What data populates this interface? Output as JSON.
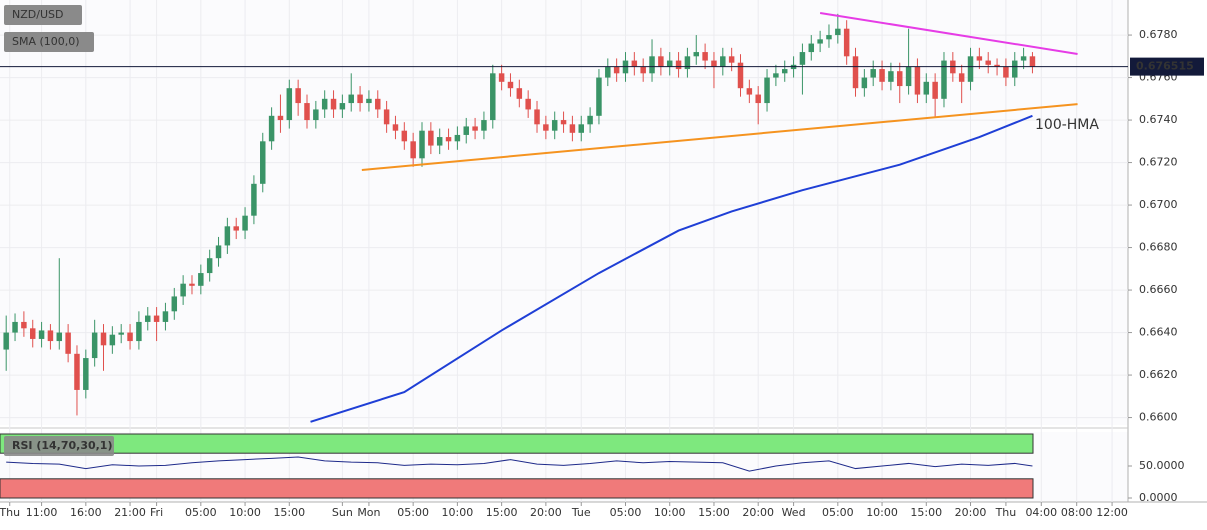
{
  "chart_data": {
    "type": "candlestick",
    "symbol": "NZD/USD",
    "indicator": "SMA (100,0)",
    "open": [
      0.6632,
      0.664,
      0.6645,
      0.6642,
      0.6637,
      0.6641,
      0.6636,
      0.664,
      0.663,
      0.6613,
      0.6628,
      0.664,
      0.6634,
      0.6639,
      0.664,
      0.6636,
      0.6645,
      0.6648,
      0.6645,
      0.665,
      0.6657,
      0.6663,
      0.6662,
      0.6668,
      0.6675,
      0.6681,
      0.669,
      0.6688,
      0.6695,
      0.671,
      0.673,
      0.6742,
      0.674,
      0.6755,
      0.6748,
      0.674,
      0.6745,
      0.675,
      0.6745,
      0.6748,
      0.6752,
      0.6748,
      0.675,
      0.6745,
      0.6738,
      0.6735,
      0.673,
      0.6722,
      0.6735,
      0.6728,
      0.6732,
      0.673,
      0.6733,
      0.6737,
      0.6735,
      0.674,
      0.6762,
      0.6758,
      0.6755,
      0.675,
      0.6745,
      0.6738,
      0.6735,
      0.674,
      0.6738,
      0.6734,
      0.6738,
      0.6742,
      0.676,
      0.6765,
      0.6762,
      0.6768,
      0.6765,
      0.6762,
      0.677,
      0.6765,
      0.6768,
      0.6764,
      0.677,
      0.6772,
      0.6768,
      0.6765,
      0.677,
      0.6767,
      0.6755,
      0.6752,
      0.6748,
      0.676,
      0.6762,
      0.6764,
      0.6766,
      0.6772,
      0.6776,
      0.6778,
      0.678,
      0.6783,
      0.677,
      0.6755,
      0.676,
      0.6764,
      0.6758,
      0.6763,
      0.6756,
      0.6765,
      0.6752,
      0.6758,
      0.675,
      0.6768,
      0.6762,
      0.6758,
      0.677,
      0.6768,
      0.6766,
      0.6765,
      0.676,
      0.6768,
      0.677
    ],
    "high": [
      0.6648,
      0.6649,
      0.665,
      0.6646,
      0.6645,
      0.6644,
      0.6675,
      0.6644,
      0.6634,
      0.6632,
      0.6646,
      0.6644,
      0.6643,
      0.6644,
      0.6644,
      0.665,
      0.6652,
      0.6652,
      0.6654,
      0.6661,
      0.6667,
      0.6667,
      0.6672,
      0.6679,
      0.6685,
      0.6694,
      0.6694,
      0.6699,
      0.6714,
      0.6734,
      0.6746,
      0.6752,
      0.6759,
      0.6759,
      0.6752,
      0.6749,
      0.6754,
      0.6754,
      0.6752,
      0.6762,
      0.6756,
      0.6754,
      0.6754,
      0.6749,
      0.6742,
      0.6739,
      0.6734,
      0.6739,
      0.6739,
      0.6736,
      0.6736,
      0.6737,
      0.6741,
      0.6741,
      0.6744,
      0.6766,
      0.6766,
      0.6762,
      0.6759,
      0.6754,
      0.6749,
      0.6742,
      0.6744,
      0.6744,
      0.6742,
      0.6742,
      0.6746,
      0.6764,
      0.6769,
      0.6769,
      0.6772,
      0.6772,
      0.6769,
      0.6778,
      0.6774,
      0.6772,
      0.6772,
      0.6774,
      0.678,
      0.6776,
      0.6772,
      0.6774,
      0.6774,
      0.6771,
      0.6759,
      0.6756,
      0.6764,
      0.6766,
      0.6768,
      0.677,
      0.6776,
      0.678,
      0.6782,
      0.6785,
      0.679,
      0.6787,
      0.6774,
      0.6764,
      0.6768,
      0.6768,
      0.6767,
      0.6767,
      0.6783,
      0.6769,
      0.6762,
      0.6762,
      0.6772,
      0.6772,
      0.6766,
      0.6774,
      0.6774,
      0.6772,
      0.6769,
      0.6769,
      0.6772,
      0.6774,
      0.6772
    ],
    "low": [
      0.6622,
      0.6636,
      0.6638,
      0.6633,
      0.6633,
      0.6632,
      0.6632,
      0.6626,
      0.6601,
      0.6609,
      0.6624,
      0.6622,
      0.663,
      0.6635,
      0.6632,
      0.6632,
      0.6641,
      0.6636,
      0.6641,
      0.6646,
      0.6653,
      0.6658,
      0.6658,
      0.6664,
      0.6671,
      0.6677,
      0.6684,
      0.6684,
      0.6691,
      0.6706,
      0.6726,
      0.6734,
      0.6736,
      0.6742,
      0.6736,
      0.6736,
      0.6741,
      0.6741,
      0.6741,
      0.6744,
      0.6744,
      0.6744,
      0.6741,
      0.6734,
      0.6731,
      0.6726,
      0.6718,
      0.6718,
      0.6724,
      0.6724,
      0.6726,
      0.6726,
      0.6729,
      0.6731,
      0.6731,
      0.6736,
      0.6754,
      0.6751,
      0.6746,
      0.6741,
      0.6734,
      0.6731,
      0.6731,
      0.6734,
      0.673,
      0.673,
      0.6734,
      0.6738,
      0.6756,
      0.6758,
      0.6758,
      0.6761,
      0.6758,
      0.6758,
      0.6761,
      0.6761,
      0.676,
      0.676,
      0.6766,
      0.6764,
      0.6755,
      0.6761,
      0.6763,
      0.6751,
      0.6748,
      0.6738,
      0.6744,
      0.6756,
      0.6758,
      0.676,
      0.6752,
      0.6768,
      0.6772,
      0.6774,
      0.6776,
      0.6766,
      0.6751,
      0.6751,
      0.6756,
      0.6754,
      0.6754,
      0.6748,
      0.6752,
      0.6748,
      0.6748,
      0.6741,
      0.6746,
      0.6758,
      0.6748,
      0.6754,
      0.6764,
      0.6762,
      0.6761,
      0.6756,
      0.6756,
      0.6764,
      0.6762
    ],
    "close": [
      0.664,
      0.6645,
      0.6642,
      0.6637,
      0.6641,
      0.6636,
      0.664,
      0.663,
      0.6613,
      0.6628,
      0.664,
      0.6634,
      0.6639,
      0.664,
      0.6636,
      0.6645,
      0.6648,
      0.6645,
      0.665,
      0.6657,
      0.6663,
      0.6662,
      0.6668,
      0.6675,
      0.6681,
      0.669,
      0.6688,
      0.6695,
      0.671,
      0.673,
      0.6742,
      0.674,
      0.6755,
      0.6748,
      0.674,
      0.6745,
      0.675,
      0.6745,
      0.6748,
      0.6752,
      0.6748,
      0.675,
      0.6745,
      0.6738,
      0.6735,
      0.673,
      0.6722,
      0.6735,
      0.6728,
      0.6732,
      0.673,
      0.6733,
      0.6737,
      0.6735,
      0.674,
      0.6762,
      0.6758,
      0.6755,
      0.675,
      0.6745,
      0.6738,
      0.6735,
      0.674,
      0.6738,
      0.6734,
      0.6738,
      0.6742,
      0.676,
      0.6765,
      0.6762,
      0.6768,
      0.6765,
      0.6762,
      0.677,
      0.6765,
      0.6768,
      0.6764,
      0.677,
      0.6772,
      0.6768,
      0.6765,
      0.677,
      0.6767,
      0.6755,
      0.6752,
      0.6748,
      0.676,
      0.6762,
      0.6764,
      0.6766,
      0.6772,
      0.6776,
      0.6778,
      0.678,
      0.6783,
      0.677,
      0.6755,
      0.676,
      0.6764,
      0.6758,
      0.6763,
      0.6756,
      0.6765,
      0.6752,
      0.6758,
      0.675,
      0.6768,
      0.6762,
      0.6758,
      0.677,
      0.6768,
      0.6766,
      0.6765,
      0.676,
      0.6768,
      0.677,
      0.67652
    ],
    "up_color": "#3a9467",
    "down_color": "#e0504d",
    "xlim": [
      -0.7,
      126.8
    ],
    "xticks": [
      {
        "value": 0.4,
        "label": "Thu"
      },
      {
        "value": 4,
        "label": "11:00"
      },
      {
        "value": 9,
        "label": "16:00"
      },
      {
        "value": 14,
        "label": "21:00"
      },
      {
        "value": 17,
        "label": "Fri"
      },
      {
        "value": 22,
        "label": "05:00"
      },
      {
        "value": 27,
        "label": "10:00"
      },
      {
        "value": 32,
        "label": "15:00"
      },
      {
        "value": 38,
        "label": "Sun"
      },
      {
        "value": 41,
        "label": "Mon"
      },
      {
        "value": 46,
        "label": "05:00"
      },
      {
        "value": 51,
        "label": "10:00"
      },
      {
        "value": 56,
        "label": "15:00"
      },
      {
        "value": 61,
        "label": "20:00"
      },
      {
        "value": 65,
        "label": "Tue"
      },
      {
        "value": 70,
        "label": "05:00"
      },
      {
        "value": 75,
        "label": "10:00"
      },
      {
        "value": 80,
        "label": "15:00"
      },
      {
        "value": 85,
        "label": "20:00"
      },
      {
        "value": 89,
        "label": "Wed"
      },
      {
        "value": 94,
        "label": "05:00"
      },
      {
        "value": 99,
        "label": "10:00"
      },
      {
        "value": 104,
        "label": "15:00"
      },
      {
        "value": 109,
        "label": "20:00"
      },
      {
        "value": 113,
        "label": "Thu"
      },
      {
        "value": 117,
        "label": "04:00"
      },
      {
        "value": 121,
        "label": "08:00"
      },
      {
        "value": 125,
        "label": "12:00"
      }
    ],
    "ylim": [
      0.65965,
      0.67965
    ],
    "yticks": [
      {
        "value": 0.678,
        "label": "0.6780"
      },
      {
        "value": 0.676,
        "label": "0.6760"
      },
      {
        "value": 0.674,
        "label": "0.6740"
      },
      {
        "value": 0.672,
        "label": "0.6720"
      },
      {
        "value": 0.67,
        "label": "0.6700"
      },
      {
        "value": 0.668,
        "label": "0.6680"
      },
      {
        "value": 0.666,
        "label": "0.6660"
      },
      {
        "value": 0.664,
        "label": "0.6640"
      },
      {
        "value": 0.662,
        "label": "0.6620"
      },
      {
        "value": 0.66,
        "label": "0.6600"
      }
    ],
    "grid": true,
    "overlays": [
      {
        "color": "#1f3fd6",
        "x": [
          34.4,
          45,
          56,
          67,
          76,
          82,
          90,
          101,
          110,
          116
        ],
        "values": [
          0.6598,
          0.6612,
          0.6641,
          0.6668,
          0.6688,
          0.6697,
          0.6707,
          0.6719,
          0.6732,
          0.6742
        ]
      },
      {
        "color": "#f5931f",
        "x": [
          40.2,
          121.1
        ],
        "values": [
          0.67165,
          0.67475
        ]
      },
      {
        "color": "#e63ce6",
        "x": [
          92,
          121.1
        ],
        "values": [
          0.67904,
          0.67711
        ]
      }
    ],
    "annotation": "100-HMA",
    "annotation_color": "#5566dd",
    "last_price": 0.676515,
    "last_price_color": "#131a3a",
    "rsi": {
      "label": "RSI (14,70,30,1)",
      "color": "#1e2a8a",
      "upper_band_color": "#7ee87e",
      "lower_band_color": "#f07a7a",
      "overbought": 70,
      "oversold": 30,
      "x": [
        0,
        3,
        6,
        9,
        12,
        15,
        18,
        21,
        24,
        27,
        30,
        33,
        36,
        39,
        42,
        45,
        48,
        51,
        54,
        57,
        60,
        63,
        66,
        69,
        72,
        75,
        78,
        81,
        84,
        87,
        90,
        93,
        96,
        99,
        102,
        105,
        108,
        111,
        114,
        116
      ],
      "values": [
        56,
        54,
        53,
        46,
        52,
        50,
        51,
        55,
        58,
        60,
        62,
        64,
        58,
        56,
        55,
        51,
        53,
        52,
        54,
        60,
        53,
        51,
        54,
        58,
        55,
        57,
        56,
        55,
        42,
        50,
        55,
        58,
        46,
        50,
        54,
        49,
        53,
        51,
        54,
        50
      ],
      "ylim": [
        0,
        100
      ],
      "yticks": [
        {
          "value": 50,
          "label": "50.0000"
        },
        {
          "value": 0,
          "label": "0.0000"
        }
      ]
    }
  }
}
